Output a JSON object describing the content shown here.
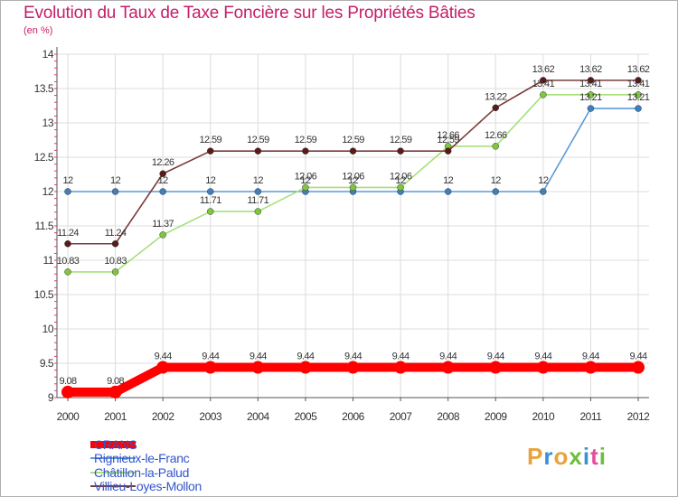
{
  "title": "Evolution du Taux de Taxe Foncière sur les Propriétés Bâties",
  "unit_label": "(en %)",
  "logo": {
    "text": "Proxiti",
    "letter_colors": [
      "#e8a33c",
      "#3b8fd6",
      "#e8a33c",
      "#6cbf3a",
      "#3b8fd6",
      "#e84c9a",
      "#6cbf3a"
    ]
  },
  "chart_data": {
    "type": "line",
    "x": [
      "2000",
      "2001",
      "2002",
      "2003",
      "2004",
      "2005",
      "2006",
      "2007",
      "2008",
      "2009",
      "2010",
      "2011",
      "2012"
    ],
    "ylim": [
      9,
      14
    ],
    "yticks": [
      "9",
      "9.5",
      "10",
      "10.5",
      "11",
      "11.5",
      "12",
      "12.5",
      "13",
      "13.5",
      "14"
    ],
    "grid": true,
    "legend_position": "bottom-left",
    "series": [
      {
        "name": "CRANS",
        "color": "#ff0000",
        "marker": "#ff0000",
        "values": [
          9.08,
          9.08,
          9.44,
          9.44,
          9.44,
          9.44,
          9.44,
          9.44,
          9.44,
          9.44,
          9.44,
          9.44,
          9.44
        ],
        "labels": [
          "9.08",
          "9.08",
          "9.44",
          "9.44",
          "9.44",
          "9.44",
          "9.44",
          "9.44",
          "9.44",
          "9.44",
          "9.44",
          "9.44",
          "9.44"
        ]
      },
      {
        "name": "Rignieux-le-Franc",
        "color": "#5b9bd5",
        "marker": "#3f7fc0",
        "values": [
          12,
          12,
          12,
          12,
          12,
          12,
          12,
          12,
          12,
          12,
          12,
          13.21,
          13.21
        ],
        "labels": [
          "12",
          "12",
          "12",
          "12",
          "12",
          "12",
          "12",
          "12",
          "12",
          "12",
          "12",
          "13.21",
          "13.21"
        ]
      },
      {
        "name": "Châtillon-la-Palud",
        "color": "#a6e07a",
        "marker": "#7cc83a",
        "values": [
          10.83,
          10.83,
          11.37,
          11.71,
          11.71,
          12.06,
          12.06,
          12.06,
          12.66,
          12.66,
          13.41,
          13.41,
          13.41
        ],
        "labels": [
          "10.83",
          "10.83",
          "11.37",
          "11.71",
          "11.71",
          "12.06",
          "12.06",
          "12.06",
          "12.66",
          "12.66",
          "13.41",
          "13.41",
          "13.41"
        ]
      },
      {
        "name": "Villieu-Loyes-Mollon",
        "color": "#7b3b3b",
        "marker": "#5a1a1a",
        "values": [
          11.24,
          11.24,
          12.26,
          12.59,
          12.59,
          12.59,
          12.59,
          12.59,
          12.59,
          13.22,
          13.62,
          13.62,
          13.62
        ],
        "labels": [
          "11.24",
          "11.24",
          "12.26",
          "12.59",
          "12.59",
          "12.59",
          "12.59",
          "12.59",
          "12.59",
          "13.22",
          "13.62",
          "13.62",
          "13.62"
        ]
      }
    ]
  }
}
